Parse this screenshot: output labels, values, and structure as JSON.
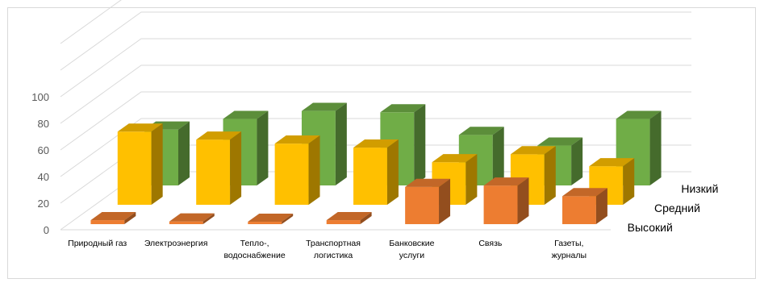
{
  "chart_data": {
    "type": "bar",
    "subtype": "3d-column",
    "categories": [
      "Природный газ",
      "Электроэнергия",
      "Тепло-, водоснабжение",
      "Транспортная логистика",
      "Банковские услуги",
      "Связь",
      "Газеты, журналы"
    ],
    "category_lines": [
      [
        "Природный газ"
      ],
      [
        "Электроэнергия"
      ],
      [
        "Тепло-,",
        "водоснабжение"
      ],
      [
        "Транспортная",
        "логистика"
      ],
      [
        "Банковские",
        "услуги"
      ],
      [
        "Связь"
      ],
      [
        "Газеты,",
        "журналы"
      ]
    ],
    "series": [
      {
        "name": "Высокий",
        "color": "#ed7d31",
        "values": [
          3,
          2,
          0,
          3,
          28,
          29,
          21
        ]
      },
      {
        "name": "Средний",
        "color": "#ffc000",
        "values": [
          55,
          49,
          46,
          43,
          32,
          38,
          29
        ]
      },
      {
        "name": "Низкий",
        "color": "#70ad47",
        "values": [
          42,
          50,
          56,
          55,
          38,
          30,
          50
        ]
      }
    ],
    "y_ticks": [
      "0",
      "20",
      "40",
      "60",
      "80",
      "100"
    ],
    "ylim": [
      0,
      140
    ],
    "grid": true,
    "legend": "series labels on depth axis"
  }
}
